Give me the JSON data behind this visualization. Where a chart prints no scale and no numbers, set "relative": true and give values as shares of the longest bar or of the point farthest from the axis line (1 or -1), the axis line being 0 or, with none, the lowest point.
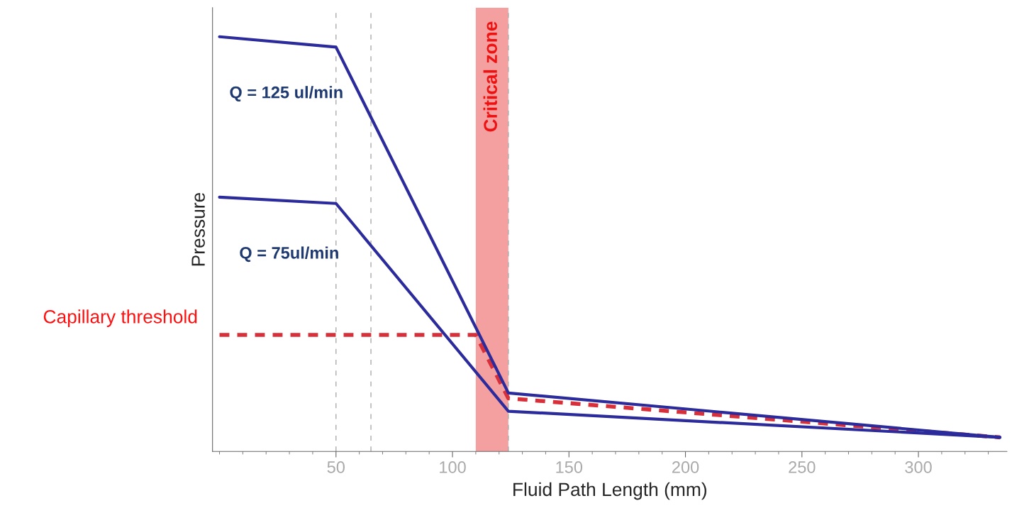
{
  "chart_data": {
    "type": "line",
    "relative": true,
    "xlabel": "Fluid Path Length (mm)",
    "ylabel": "Pressure",
    "xlim": [
      -3,
      338
    ],
    "xticks": [
      50,
      100,
      150,
      200,
      250,
      300
    ],
    "tick_labels": "x",
    "legend": false,
    "grid": false,
    "x": [
      0,
      50,
      124,
      335
    ],
    "series": [
      {
        "name": "Q = 125 ul/min",
        "color": "#2b2b9c",
        "values": [
          1,
          0.975,
          0.141,
          0.034
        ]
      },
      {
        "name": "Q = 75ul/min",
        "color": "#2b2b9c",
        "values": [
          0.613,
          0.598,
          0.097,
          0.034
        ]
      },
      {
        "name": "Capillary threshold",
        "color": "#d8303a",
        "line_style": "dashed",
        "x": [
          0,
          110,
          124,
          335
        ],
        "values": [
          0.281,
          0.281,
          0.128,
          0.034
        ]
      }
    ],
    "bands": [
      {
        "axis": "x",
        "from": 110,
        "to": 124,
        "label": "Critical zone",
        "color": "#f4a0a0"
      }
    ],
    "ref_lines": [
      {
        "axis": "x",
        "value": 50,
        "label": null,
        "line_style": "dashed"
      },
      {
        "axis": "x",
        "value": 65,
        "label": null,
        "line_style": "dashed"
      },
      {
        "axis": "x",
        "value": 124,
        "label": null,
        "line_style": "dashed"
      }
    ]
  }
}
